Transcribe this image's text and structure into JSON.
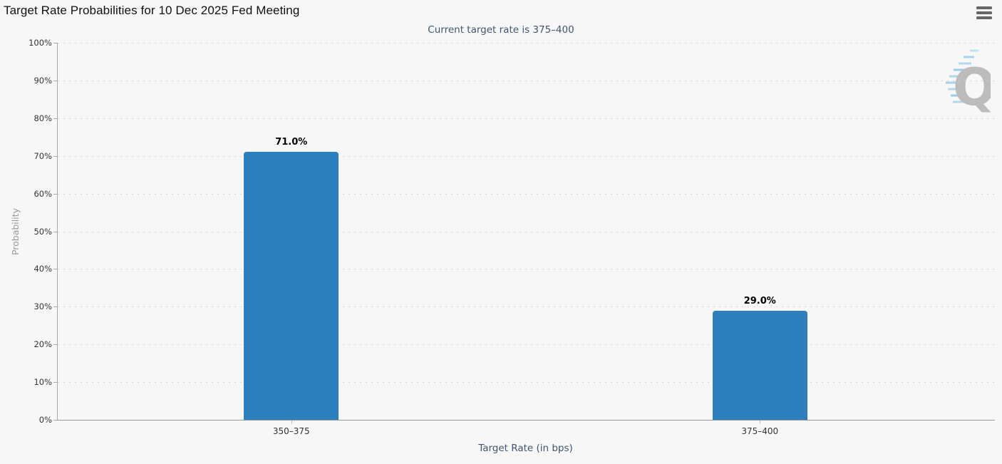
{
  "chart": {
    "menu_tooltip": "Chart context menu"
  },
  "watermark": {
    "icon": "quikstrike-q-logo",
    "letter": "Q"
  },
  "colors": {
    "bar": "#2c7ebc",
    "background": "#f7f7f7",
    "subtitle_text": "#3e576f",
    "tick_text": "#333333",
    "yaxis_title_text": "#999999",
    "gridline": "#d4d4d4",
    "axis_line": "#a0a0a0",
    "menu_icon": "#666666",
    "watermark_q": "#bcbcbc",
    "watermark_lines": "#a5d3e8"
  },
  "chart_data": {
    "type": "bar",
    "title": "Target Rate Probabilities for 10 Dec 2025 Fed Meeting",
    "subtitle": "Current target rate is 375–400",
    "categories": [
      "350–375",
      "375–400"
    ],
    "values": [
      71.0,
      29.0
    ],
    "value_labels": [
      "71.0%",
      "29.0%"
    ],
    "series": [
      {
        "name": "Probability",
        "values": [
          71.0,
          29.0
        ]
      }
    ],
    "xlabel": "Target Rate (in bps)",
    "ylabel": "Probability",
    "ylim": [
      0,
      100
    ],
    "ytick_step": 10,
    "ytick_labels": [
      "0%",
      "10%",
      "20%",
      "30%",
      "40%",
      "50%",
      "60%",
      "70%",
      "80%",
      "90%",
      "100%"
    ],
    "grid": "horizontal-dotted",
    "legend": "none"
  }
}
